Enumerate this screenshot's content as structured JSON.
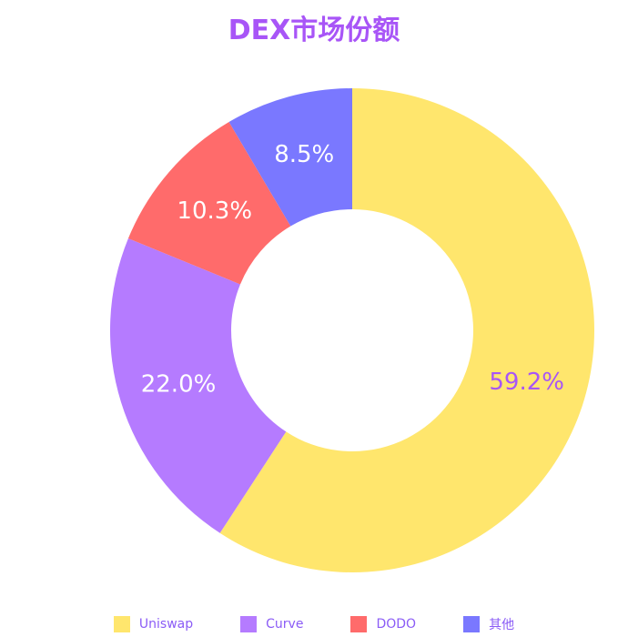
{
  "chart_data": {
    "type": "pie",
    "title": "DEX市场份额",
    "categories": [
      "Uniswap",
      "Curve",
      "DODO",
      "其他"
    ],
    "values": [
      59.2,
      22.0,
      10.3,
      8.5
    ],
    "value_labels": [
      "59.2%",
      "22.0%",
      "10.3%",
      "8.5%"
    ],
    "colors": [
      "#ffe66d",
      "#b57bff",
      "#ff6b6b",
      "#7a78ff"
    ],
    "label_colors": [
      "#a855f7",
      "#ffffff",
      "#ffffff",
      "#ffffff"
    ],
    "legend_position": "bottom",
    "donut": true
  }
}
